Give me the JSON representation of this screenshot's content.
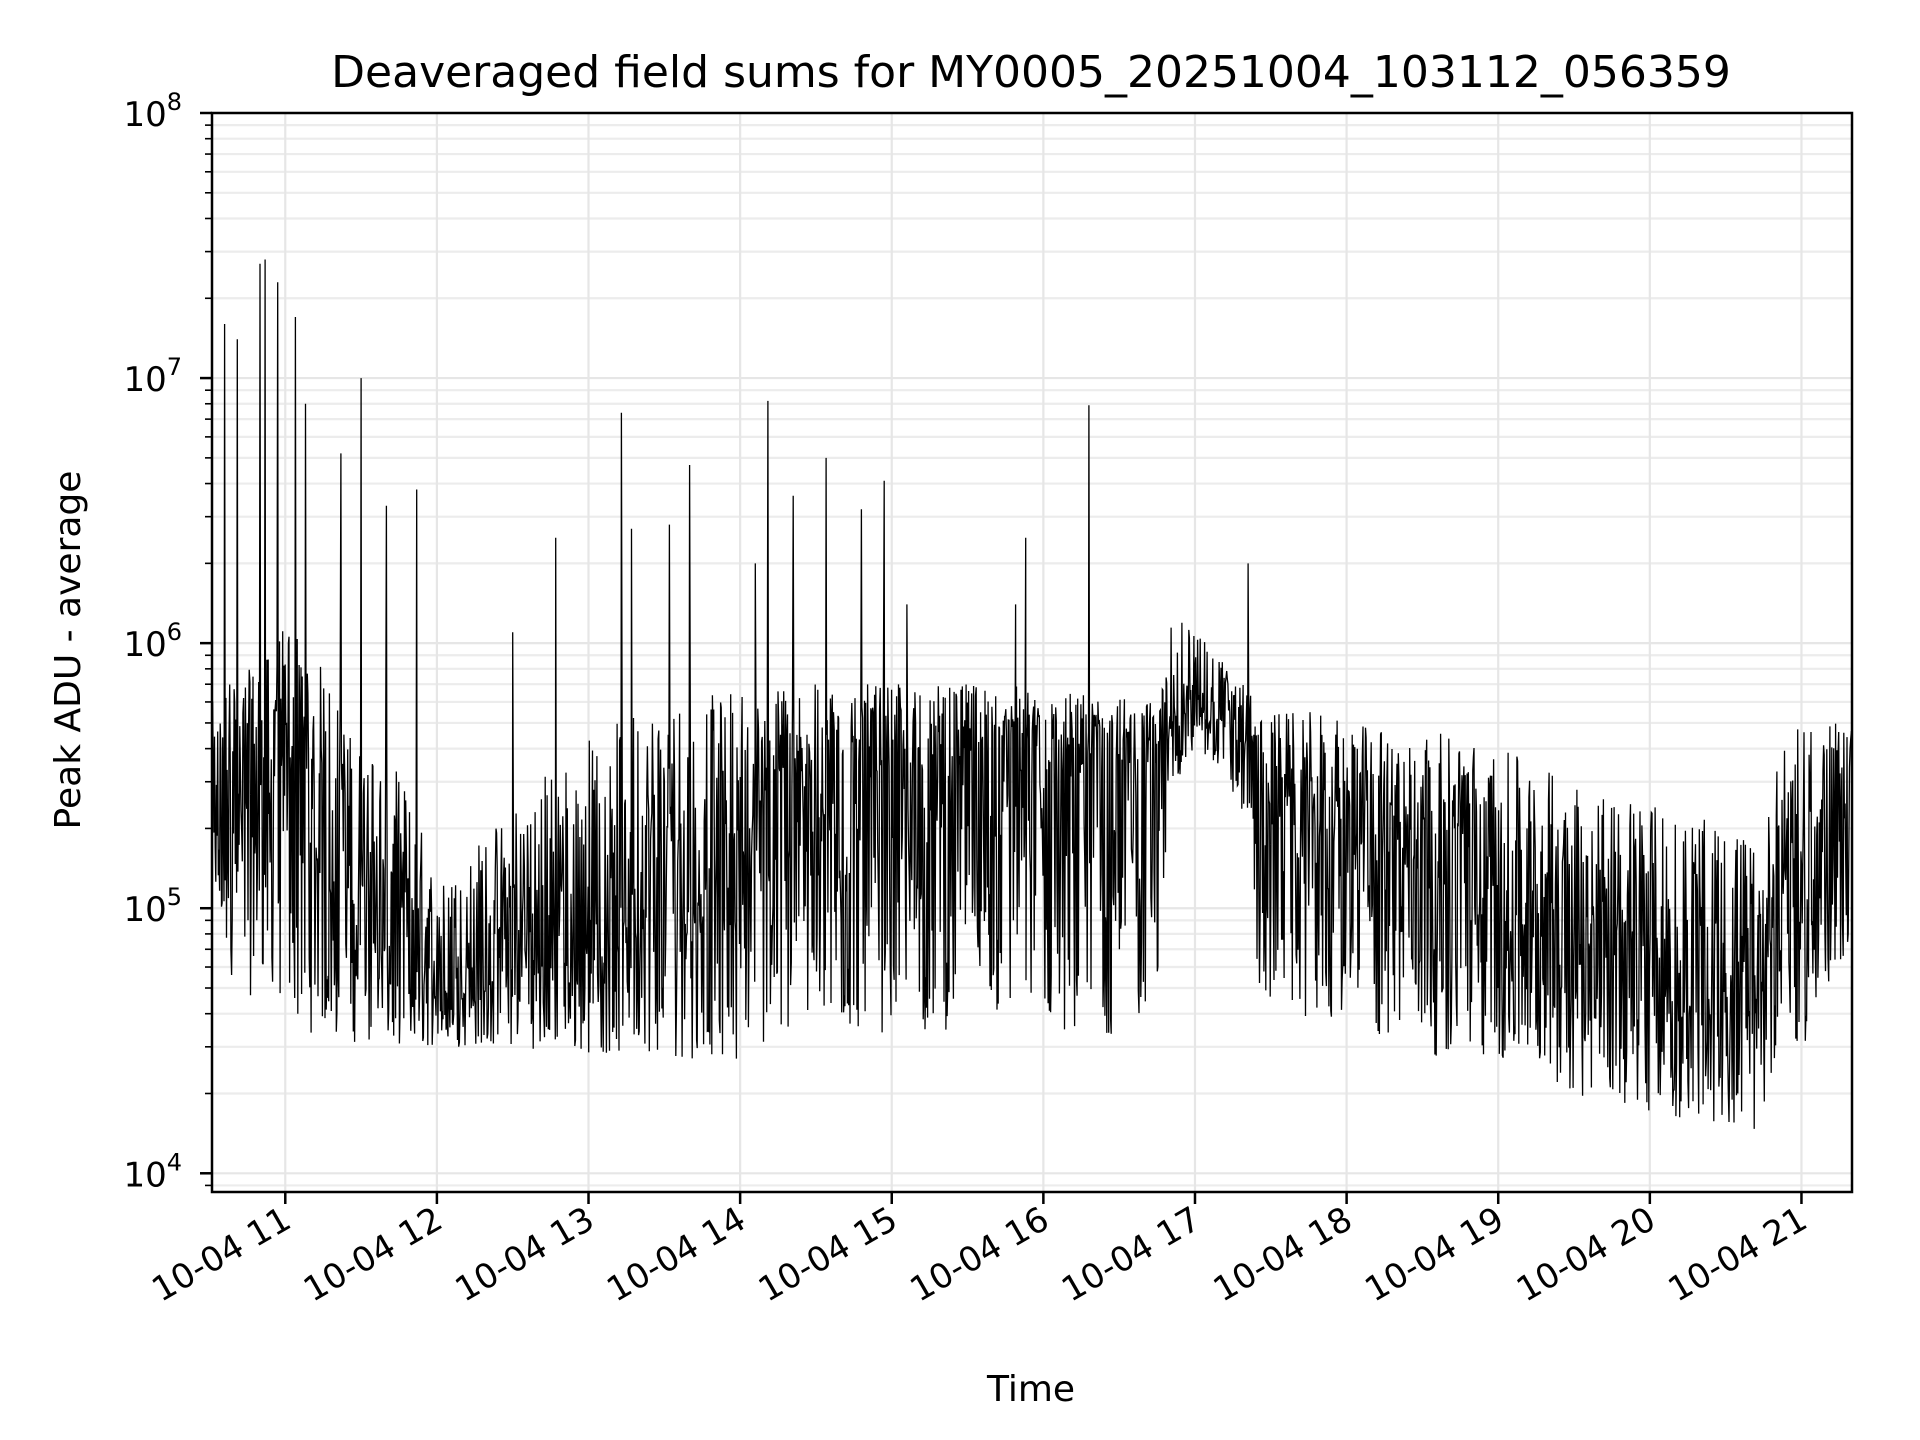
{
  "chart_data": {
    "type": "line",
    "title": "Deaveraged field sums for MY0005_20251004_103112_056359",
    "xlabel": "Time",
    "ylabel": "Peak ADU - average",
    "yscale": "log",
    "ylim": [
      8500,
      100000000
    ],
    "xlim": [
      "2025-10-04 10:31",
      "2025-10-04 21:20"
    ],
    "grid": true,
    "x_tick_labels": [
      "10-04 11",
      "10-04 12",
      "10-04 13",
      "10-04 14",
      "10-04 15",
      "10-04 16",
      "10-04 17",
      "10-04 18",
      "10-04 19",
      "10-04 20",
      "10-04 21"
    ],
    "y_ticks": [
      {
        "base": "10",
        "exp": "4",
        "value": 10000
      },
      {
        "base": "10",
        "exp": "5",
        "value": 100000
      },
      {
        "base": "10",
        "exp": "6",
        "value": 1000000
      },
      {
        "base": "10",
        "exp": "7",
        "value": 10000000
      },
      {
        "base": "10",
        "exp": "8",
        "value": 100000000
      }
    ],
    "series": [
      {
        "color": "#000000",
        "x": [
          "10:31",
          "10:36",
          "10:42",
          "10:48",
          "10:54",
          "11:00",
          "11:06",
          "11:12",
          "11:18",
          "11:24",
          "11:30",
          "11:36",
          "11:42",
          "11:48",
          "11:54",
          "12:00",
          "12:15",
          "12:30",
          "12:45",
          "13:00",
          "13:15",
          "13:30",
          "13:45",
          "14:00",
          "14:15",
          "14:30",
          "14:45",
          "15:00",
          "15:15",
          "15:30",
          "15:45",
          "16:00",
          "16:15",
          "16:30",
          "16:45",
          "16:50",
          "17:00",
          "17:10",
          "17:20",
          "17:25",
          "17:35",
          "17:50",
          "18:00",
          "18:15",
          "18:30",
          "18:45",
          "19:00",
          "19:15",
          "19:30",
          "19:45",
          "20:00",
          "20:15",
          "20:30",
          "20:45",
          "20:50",
          "21:00",
          "21:10",
          "21:20"
        ],
        "y": [
          200000,
          300000,
          350000,
          350000,
          400000,
          450000,
          500000,
          350000,
          200000,
          150000,
          120000,
          90000,
          70000,
          60000,
          55000,
          50000,
          55000,
          60000,
          65000,
          80000,
          90000,
          110000,
          140000,
          200000,
          250000,
          300000,
          350000,
          380000,
          400000,
          420000,
          430000,
          400000,
          380000,
          360000,
          350000,
          550000,
          650000,
          500000,
          450000,
          300000,
          280000,
          260000,
          240000,
          220000,
          200000,
          180000,
          160000,
          140000,
          100000,
          70000,
          55000,
          50000,
          48000,
          45000,
          90000,
          150000,
          200000,
          250000
        ],
        "lower": [
          100000,
          60000,
          50000,
          45000,
          50000,
          40000,
          35000,
          33000,
          32000,
          31000,
          31000,
          30000,
          30000,
          30000,
          30000,
          30000,
          30000,
          30000,
          29000,
          28000,
          28000,
          27000,
          27000,
          27000,
          30000,
          32000,
          33000,
          34000,
          34000,
          35000,
          35000,
          35000,
          34000,
          33000,
          35000,
          280000,
          380000,
          320000,
          200000,
          45000,
          40000,
          38000,
          32000,
          30000,
          28000,
          27000,
          26000,
          24000,
          20000,
          18000,
          17000,
          16000,
          15000,
          14000,
          30000,
          30000,
          40000,
          80000
        ],
        "upper": [
          600000,
          700000,
          800000,
          800000,
          900000,
          1200000,
          1100000,
          900000,
          700000,
          500000,
          450000,
          400000,
          350000,
          300000,
          200000,
          120000,
          180000,
          250000,
          350000,
          450000,
          550000,
          600000,
          650000,
          680000,
          700000,
          700000,
          700000,
          700000,
          700000,
          700000,
          700000,
          680000,
          650000,
          620000,
          600000,
          1200000,
          1200000,
          900000,
          700000,
          550000,
          550000,
          550000,
          500000,
          480000,
          470000,
          450000,
          400000,
          350000,
          300000,
          280000,
          250000,
          230000,
          200000,
          180000,
          350000,
          500000,
          500000,
          500000
        ],
        "spikes": [
          {
            "x": "10:36",
            "y": 16000000
          },
          {
            "x": "10:41",
            "y": 14000000
          },
          {
            "x": "10:50",
            "y": 27000000
          },
          {
            "x": "10:52",
            "y": 28000000
          },
          {
            "x": "10:57",
            "y": 23000000
          },
          {
            "x": "11:04",
            "y": 17000000
          },
          {
            "x": "11:08",
            "y": 8000000
          },
          {
            "x": "11:22",
            "y": 5200000
          },
          {
            "x": "11:30",
            "y": 10000000
          },
          {
            "x": "11:40",
            "y": 3300000
          },
          {
            "x": "11:52",
            "y": 3800000
          },
          {
            "x": "12:30",
            "y": 1100000
          },
          {
            "x": "12:47",
            "y": 2500000
          },
          {
            "x": "13:13",
            "y": 7400000
          },
          {
            "x": "13:17",
            "y": 2700000
          },
          {
            "x": "13:32",
            "y": 2800000
          },
          {
            "x": "13:40",
            "y": 4700000
          },
          {
            "x": "14:06",
            "y": 2000000
          },
          {
            "x": "14:11",
            "y": 8200000
          },
          {
            "x": "14:21",
            "y": 3600000
          },
          {
            "x": "14:34",
            "y": 5000000
          },
          {
            "x": "14:48",
            "y": 3200000
          },
          {
            "x": "14:57",
            "y": 4100000
          },
          {
            "x": "15:06",
            "y": 1400000
          },
          {
            "x": "15:49",
            "y": 1400000
          },
          {
            "x": "15:53",
            "y": 2500000
          },
          {
            "x": "16:18",
            "y": 7900000
          },
          {
            "x": "17:21",
            "y": 2000000
          }
        ]
      }
    ]
  }
}
